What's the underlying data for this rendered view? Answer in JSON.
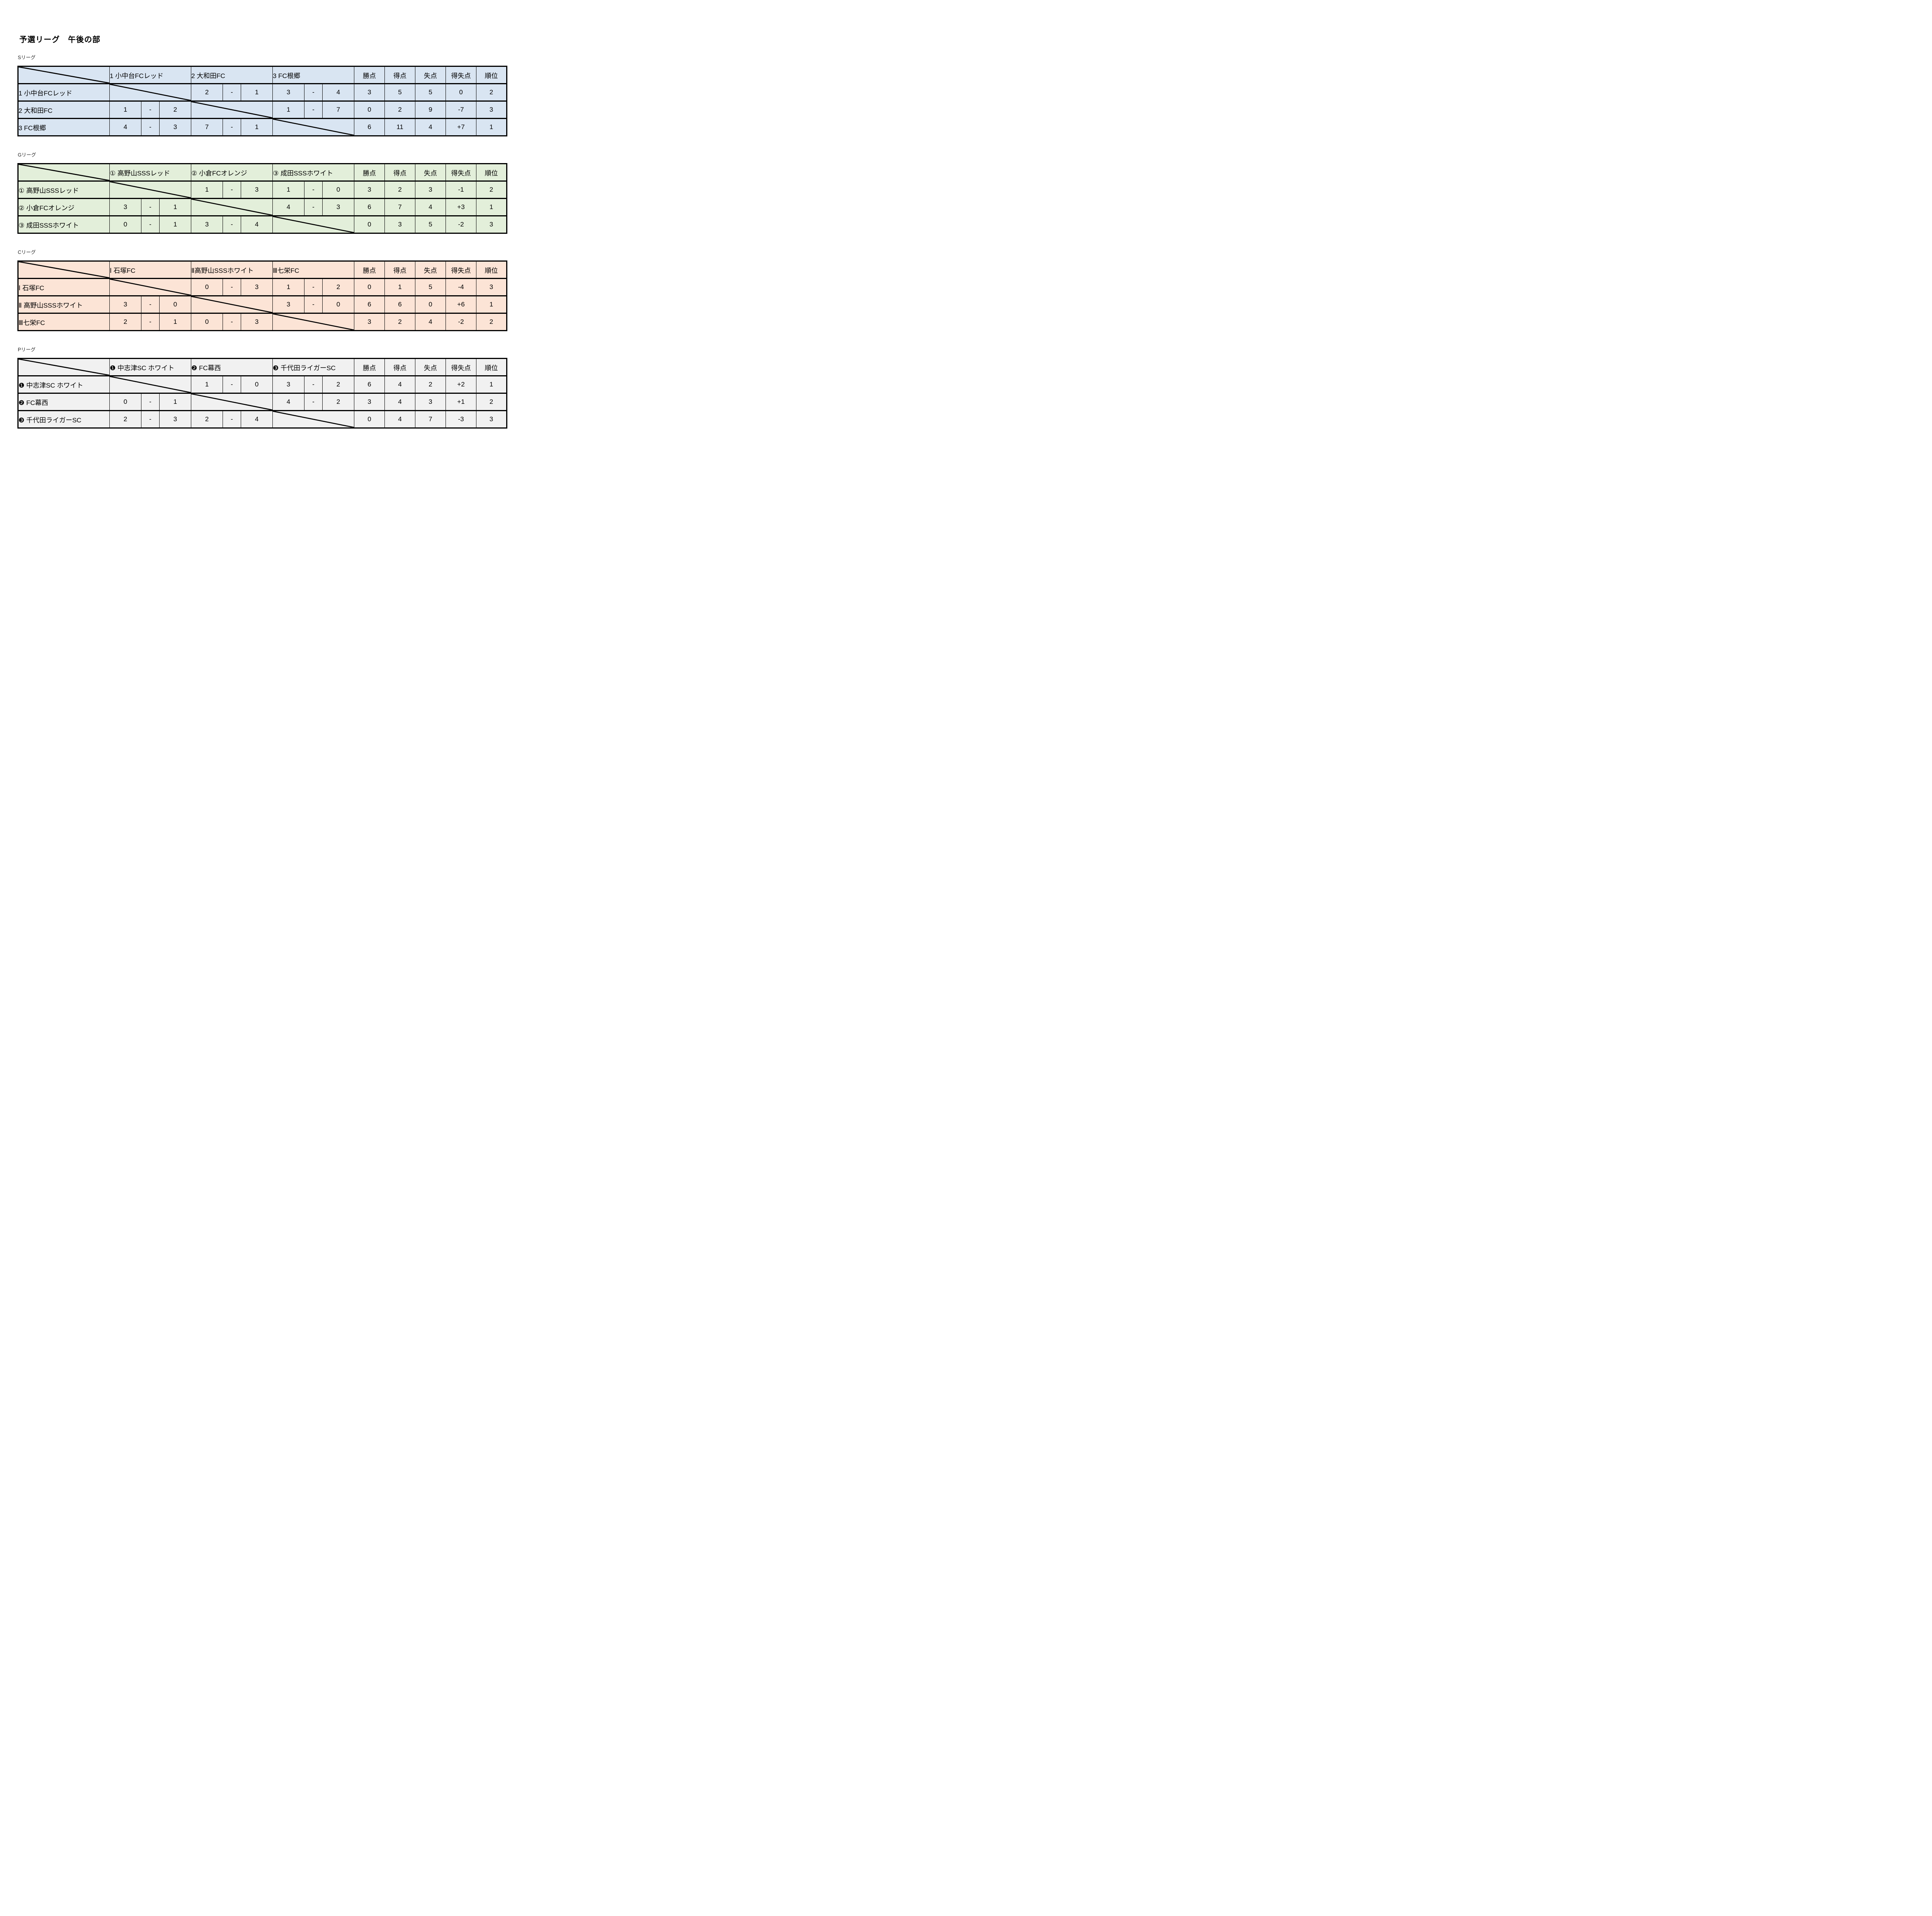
{
  "page": {
    "title": "予選リーグ　午後の部"
  },
  "dash": "-",
  "stat_headers": [
    "勝点",
    "得点",
    "失点",
    "得失点",
    "順位"
  ],
  "leagues": [
    {
      "key": "S",
      "label": "Sリーグ",
      "color": "#d9e5f2",
      "teams": [
        "1 小中台FCレッド",
        "2 大和田FC",
        "3 FC根郷"
      ],
      "rows": [
        {
          "name": "1 小中台FCレッド",
          "scores": [
            null,
            [
              "2",
              "1"
            ],
            [
              "3",
              "4"
            ]
          ],
          "stats": [
            "3",
            "5",
            "5",
            "0",
            "2"
          ]
        },
        {
          "name": "2 大和田FC",
          "scores": [
            [
              "1",
              "2"
            ],
            null,
            [
              "1",
              "7"
            ]
          ],
          "stats": [
            "0",
            "2",
            "9",
            "-7",
            "3"
          ]
        },
        {
          "name": "3 FC根郷",
          "scores": [
            [
              "4",
              "3"
            ],
            [
              "7",
              "1"
            ],
            null
          ],
          "stats": [
            "6",
            "11",
            "4",
            "+7",
            "1"
          ]
        }
      ]
    },
    {
      "key": "G",
      "label": "Gリーグ",
      "color": "#e3efda",
      "teams": [
        "① 高野山SSSレッド",
        "② 小倉FCオレンジ",
        "③ 成田SSSホワイト"
      ],
      "rows": [
        {
          "name": "① 高野山SSSレッド",
          "scores": [
            null,
            [
              "1",
              "3"
            ],
            [
              "1",
              "0"
            ]
          ],
          "stats": [
            "3",
            "2",
            "3",
            "-1",
            "2"
          ]
        },
        {
          "name": "② 小倉FCオレンジ",
          "scores": [
            [
              "3",
              "1"
            ],
            null,
            [
              "4",
              "3"
            ]
          ],
          "stats": [
            "6",
            "7",
            "4",
            "+3",
            "1"
          ]
        },
        {
          "name": "③ 成田SSSホワイト",
          "scores": [
            [
              "0",
              "1"
            ],
            [
              "3",
              "4"
            ],
            null
          ],
          "stats": [
            "0",
            "3",
            "5",
            "-2",
            "3"
          ]
        }
      ]
    },
    {
      "key": "C",
      "label": "Cリーグ",
      "color": "#fce4d6",
      "teams": [
        "Ⅰ 石塚FC",
        "Ⅱ高野山SSSホワイト",
        "Ⅲ七栄FC"
      ],
      "rows": [
        {
          "name": "Ⅰ 石塚FC",
          "scores": [
            null,
            [
              "0",
              "3"
            ],
            [
              "1",
              "2"
            ]
          ],
          "stats": [
            "0",
            "1",
            "5",
            "-4",
            "3"
          ]
        },
        {
          "name": "Ⅱ 高野山SSSホワイト",
          "scores": [
            [
              "3",
              "0"
            ],
            null,
            [
              "3",
              "0"
            ]
          ],
          "stats": [
            "6",
            "6",
            "0",
            "+6",
            "1"
          ]
        },
        {
          "name": "Ⅲ七栄FC",
          "scores": [
            [
              "2",
              "1"
            ],
            [
              "0",
              "3"
            ],
            null
          ],
          "stats": [
            "3",
            "2",
            "4",
            "-2",
            "2"
          ]
        }
      ]
    },
    {
      "key": "P",
      "label": "Pリーグ",
      "color": "#f1f1f1",
      "teams": [
        "❶ 中志津SC ホワイト",
        "❷ FC幕西",
        "❸ 千代田ライガーSC"
      ],
      "rows": [
        {
          "name": "❶ 中志津SC ホワイト",
          "scores": [
            null,
            [
              "1",
              "0"
            ],
            [
              "3",
              "2"
            ]
          ],
          "stats": [
            "6",
            "4",
            "2",
            "+2",
            "1"
          ]
        },
        {
          "name": "❷ FC幕西",
          "scores": [
            [
              "0",
              "1"
            ],
            null,
            [
              "4",
              "2"
            ]
          ],
          "stats": [
            "3",
            "4",
            "3",
            "+1",
            "2"
          ]
        },
        {
          "name": "❸ 千代田ライガーSC",
          "scores": [
            [
              "2",
              "3"
            ],
            [
              "2",
              "4"
            ],
            null
          ],
          "stats": [
            "0",
            "4",
            "7",
            "-3",
            "3"
          ]
        }
      ]
    }
  ]
}
